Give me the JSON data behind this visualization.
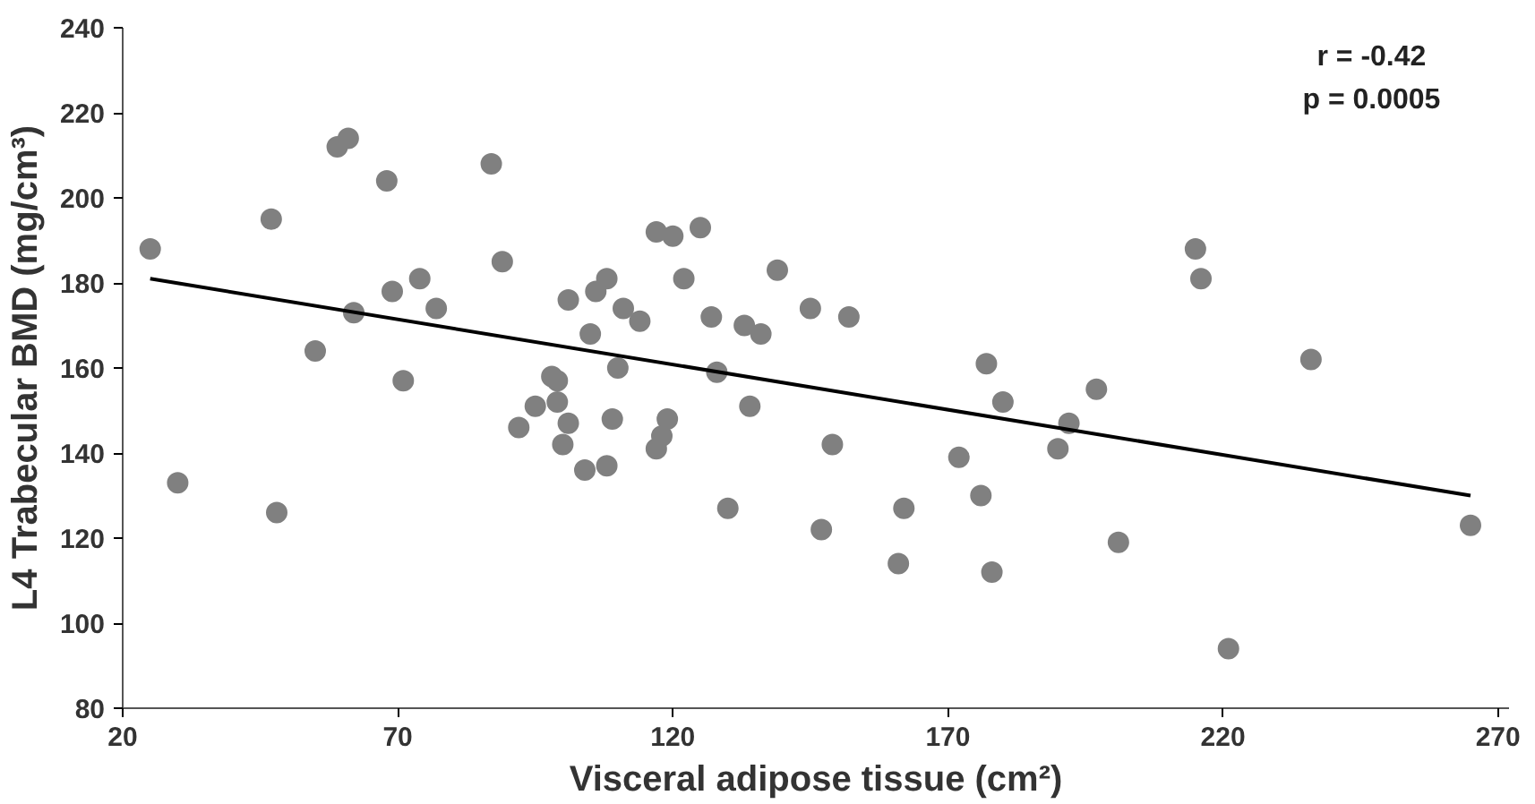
{
  "chart_data": {
    "type": "scatter",
    "xlabel": "Visceral adipose tissue (cm²)",
    "ylabel": "L4 Trabecular BMD (mg/cm³)",
    "annotations": [
      "r = -0.42",
      "p = 0.0005"
    ],
    "xlim": [
      20,
      272
    ],
    "xticks": [
      20,
      70,
      120,
      170,
      220,
      270
    ],
    "ylim": [
      80,
      240
    ],
    "yticks": [
      80,
      100,
      120,
      140,
      160,
      180,
      200,
      220,
      240
    ],
    "grid": false,
    "series": [
      {
        "color": "#808080",
        "marker": "circle",
        "x": [
          25,
          30,
          47,
          48,
          55,
          59,
          61,
          62,
          68,
          69,
          71,
          74,
          77,
          87,
          89,
          92,
          95,
          98,
          99,
          99,
          100,
          101,
          101,
          104,
          105,
          106,
          108,
          108,
          109,
          110,
          111,
          114,
          117,
          117,
          118,
          119,
          120,
          122,
          125,
          127,
          128,
          130,
          133,
          134,
          136,
          139,
          145,
          147,
          149,
          152,
          161,
          162,
          172,
          176,
          177,
          178,
          180,
          190,
          192,
          197,
          201,
          215,
          216,
          221,
          236,
          265
        ],
        "values": [
          188,
          133,
          195,
          126,
          164,
          212,
          214,
          173,
          204,
          178,
          157,
          181,
          174,
          208,
          185,
          146,
          151,
          158,
          157,
          152,
          142,
          147,
          176,
          136,
          168,
          178,
          137,
          181,
          148,
          160,
          174,
          171,
          141,
          192,
          144,
          148,
          191,
          181,
          193,
          172,
          159,
          127,
          170,
          151,
          168,
          183,
          174,
          122,
          142,
          172,
          114,
          127,
          139,
          130,
          161,
          112,
          152,
          141,
          147,
          155,
          119,
          188,
          181,
          94,
          162,
          123
        ]
      },
      {
        "type": "line",
        "color": "#000000",
        "x": [
          25,
          265
        ],
        "values": [
          181,
          130
        ]
      }
    ]
  }
}
